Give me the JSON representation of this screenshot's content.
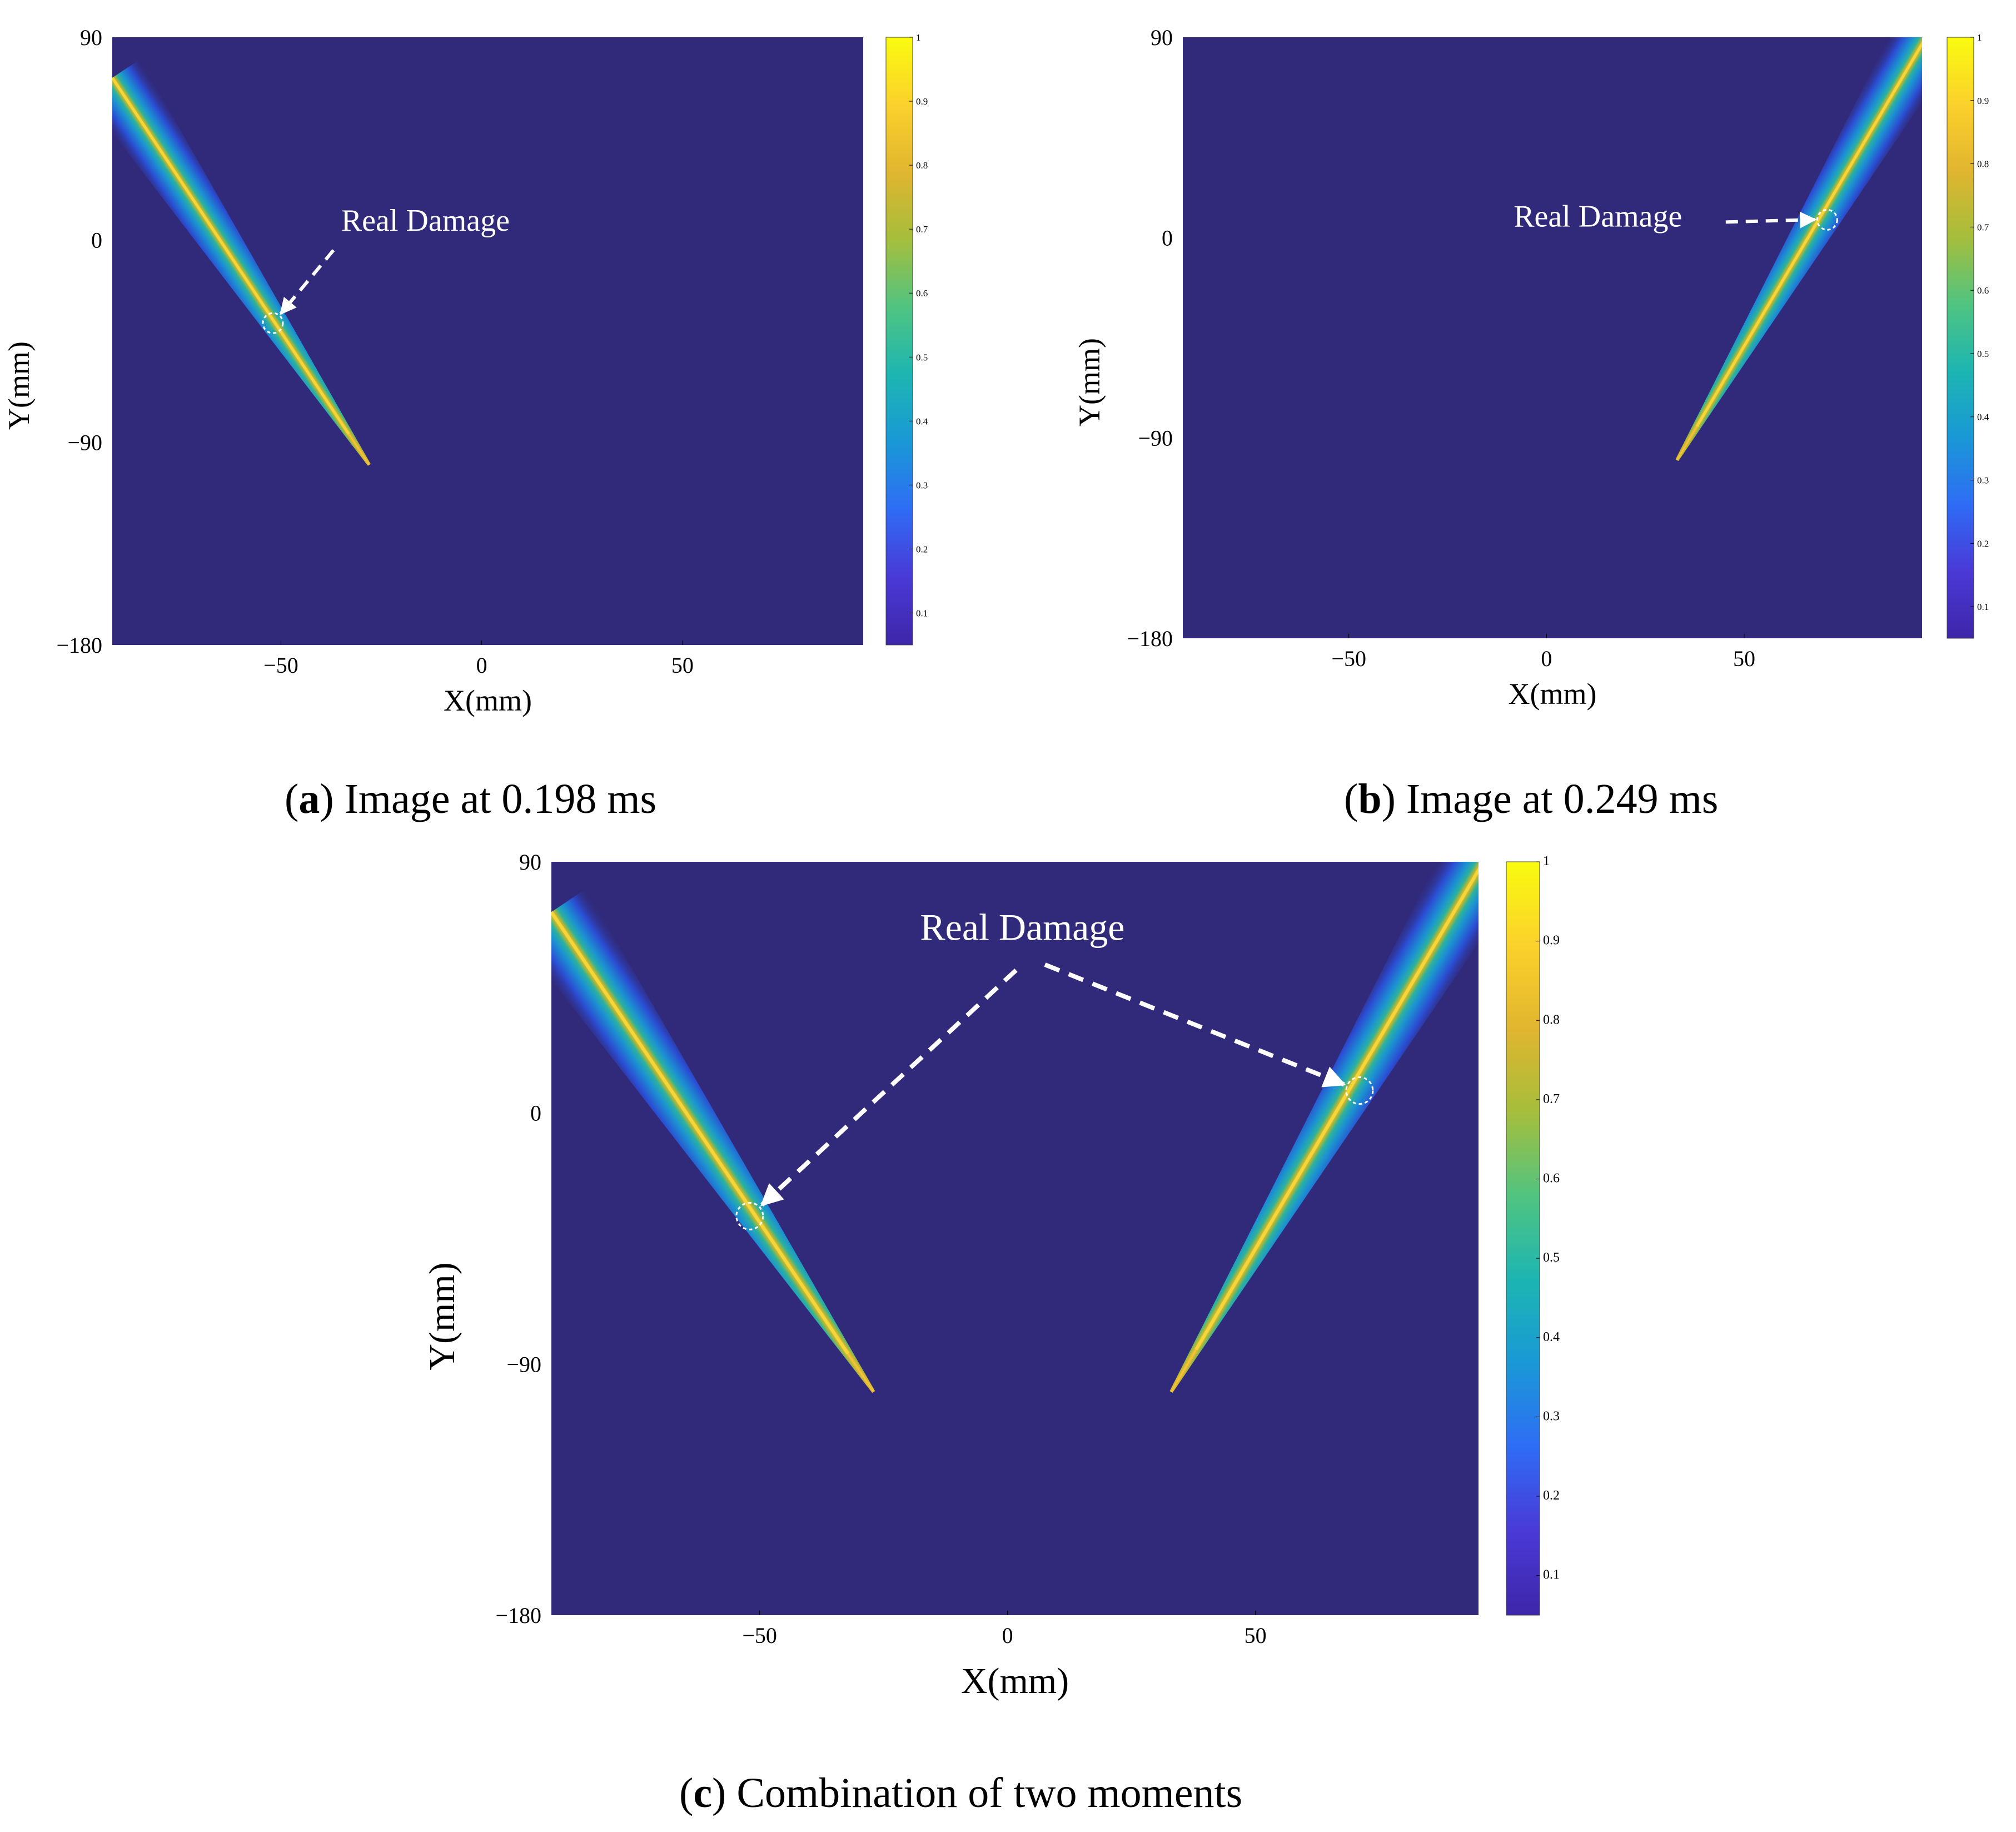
{
  "colors": {
    "background": "#312a7b",
    "annotation": "#ffffff",
    "colormap": [
      "#3e26a8",
      "#4a39d6",
      "#2f6cf5",
      "#1a98d6",
      "#1cb5b2",
      "#50c481",
      "#a5be3c",
      "#e1b52f",
      "#fbd12c",
      "#f9fb0e"
    ]
  },
  "annotation_text": "Real Damage",
  "chart_data": [
    {
      "type": "heatmap",
      "panel": "a",
      "caption_letter": "a",
      "caption_text": ") Image at 0.198 ms",
      "xlabel": "X(mm)",
      "ylabel": "Y(mm)",
      "xlim": [
        -92,
        95
      ],
      "ylim": [
        -180,
        90
      ],
      "xticks": [
        -50,
        0,
        50
      ],
      "yticks": [
        90,
        0,
        -90,
        -180
      ],
      "xtick_labels": [
        "−50",
        "0",
        "50"
      ],
      "ytick_labels": [
        "90",
        "0",
        "−90",
        "−180"
      ],
      "colorbar": {
        "range": [
          0.05,
          1
        ],
        "ticks": [
          0.1,
          0.2,
          0.3,
          0.4,
          0.5,
          0.6,
          0.7,
          0.8,
          0.9,
          1
        ],
        "tick_labels": [
          "0.1",
          "0.2",
          "0.3",
          "0.4",
          "0.5",
          "0.6",
          "0.7",
          "0.8",
          "0.9",
          "1"
        ]
      },
      "bands": [
        {
          "from": [
            -92,
            72
          ],
          "to": [
            -28,
            -100
          ]
        }
      ],
      "damage_markers": [
        {
          "x": -52,
          "y": -37
        }
      ],
      "annotation": {
        "text_x": -35,
        "text_y": 4
      }
    },
    {
      "type": "heatmap",
      "panel": "b",
      "caption_letter": "b",
      "caption_text": ") Image at 0.249 ms",
      "xlabel": "X(mm)",
      "ylabel": "Y(mm)",
      "xlim": [
        -92,
        95
      ],
      "ylim": [
        -180,
        90
      ],
      "xticks": [
        -50,
        0,
        50
      ],
      "yticks": [
        90,
        0,
        -90,
        -180
      ],
      "xtick_labels": [
        "−50",
        "0",
        "50"
      ],
      "ytick_labels": [
        "90",
        "0",
        "−90",
        "−180"
      ],
      "colorbar": {
        "range": [
          0.05,
          1
        ],
        "ticks": [
          0.1,
          0.2,
          0.3,
          0.4,
          0.5,
          0.6,
          0.7,
          0.8,
          0.9,
          1
        ],
        "tick_labels": [
          "0.1",
          "0.2",
          "0.3",
          "0.4",
          "0.5",
          "0.6",
          "0.7",
          "0.8",
          "0.9",
          "1"
        ]
      },
      "bands": [
        {
          "from": [
            96,
            90
          ],
          "to": [
            33,
            -100
          ]
        }
      ],
      "damage_markers": [
        {
          "x": 71,
          "y": 8
        }
      ],
      "annotation": {
        "text_x": 13,
        "text_y": 5
      }
    },
    {
      "type": "heatmap",
      "panel": "c",
      "caption_letter": "c",
      "caption_text": ") Combination of two moments",
      "xlabel": "X(mm)",
      "ylabel": "Y(mm)",
      "xlim": [
        -92,
        95
      ],
      "ylim": [
        -180,
        90
      ],
      "xticks": [
        -50,
        0,
        50
      ],
      "yticks": [
        90,
        0,
        -90,
        -180
      ],
      "xtick_labels": [
        "−50",
        "0",
        "50"
      ],
      "ytick_labels": [
        "90",
        "0",
        "−90",
        "−180"
      ],
      "colorbar": {
        "range": [
          0.05,
          1
        ],
        "ticks": [
          0.1,
          0.2,
          0.3,
          0.4,
          0.5,
          0.6,
          0.7,
          0.8,
          0.9,
          1
        ],
        "tick_labels": [
          "0.1",
          "0.2",
          "0.3",
          "0.4",
          "0.5",
          "0.6",
          "0.7",
          "0.8",
          "0.9",
          "1"
        ]
      },
      "bands": [
        {
          "from": [
            -92,
            72
          ],
          "to": [
            -27,
            -100
          ]
        },
        {
          "from": [
            96,
            90
          ],
          "to": [
            33,
            -100
          ]
        }
      ],
      "damage_markers": [
        {
          "x": -52,
          "y": -37
        },
        {
          "x": 71,
          "y": 8
        }
      ],
      "annotation": {
        "text_x": 3,
        "text_y": 62
      }
    }
  ]
}
